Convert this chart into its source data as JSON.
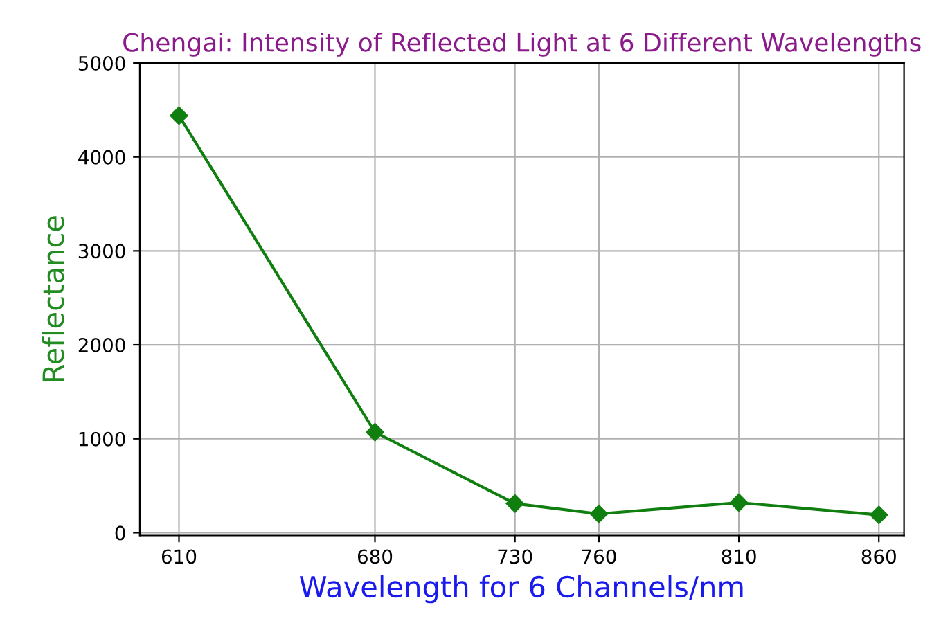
{
  "chart_data": {
    "type": "line",
    "title": "Chengai: Intensity of Reflected Light at 6 Different Wavelengths",
    "xlabel": "Wavelength for 6 Channels/nm",
    "ylabel": "Reflectance",
    "x": [
      610,
      680,
      730,
      760,
      810,
      860
    ],
    "series": [
      {
        "color": "#107f10",
        "values": [
          4440,
          1070,
          310,
          200,
          320,
          190
        ]
      }
    ],
    "xlim": [
      596,
      869
    ],
    "ylim": [
      -30,
      5000
    ],
    "xticks": [
      610,
      680,
      730,
      760,
      810,
      860
    ],
    "yticks": [
      0,
      1000,
      2000,
      3000,
      4000,
      5000
    ],
    "grid": true,
    "marker": "diamond",
    "line_style": "solid"
  }
}
